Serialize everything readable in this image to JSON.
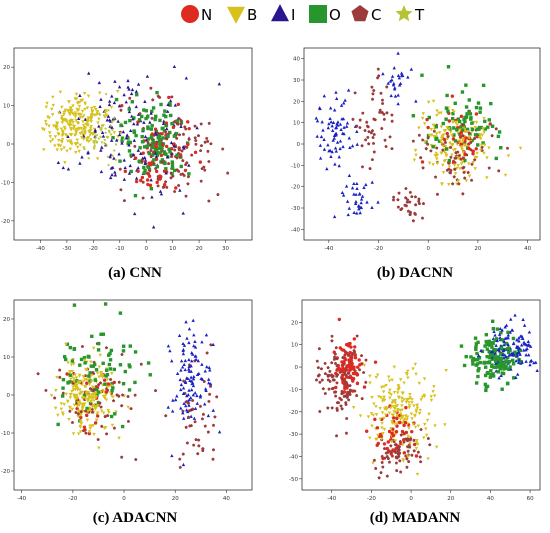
{
  "colors": {
    "N": "#dd2b21",
    "B": "#d8c11b",
    "I": "#2a1790",
    "O": "#28962c",
    "C": "#9b3b3b",
    "T": "#b6c434",
    "blue_points": "#1a22c4"
  },
  "legend": [
    {
      "key": "N",
      "label": "N",
      "marker": "circle-icon",
      "color": "#dd2b21"
    },
    {
      "key": "B",
      "label": "B",
      "marker": "down-triangle-icon",
      "color": "#d8c11b"
    },
    {
      "key": "I",
      "label": "I",
      "marker": "up-triangle-icon",
      "color": "#2a1790"
    },
    {
      "key": "O",
      "label": "O",
      "marker": "square-icon",
      "color": "#28962c"
    },
    {
      "key": "C",
      "label": "C",
      "marker": "pentagon-icon",
      "color": "#9b3b3b"
    },
    {
      "key": "T",
      "label": "T",
      "marker": "star-icon",
      "color": "#b6c434"
    }
  ],
  "chart_data": [
    {
      "type": "scatter",
      "caption": "(a) CNN",
      "xlim": [
        -50,
        40
      ],
      "ylim": [
        -25,
        25
      ],
      "xticks": [
        -40,
        -30,
        -20,
        -10,
        0,
        10,
        20,
        30
      ],
      "yticks": [
        -20,
        -10,
        0,
        10,
        20
      ],
      "clusters": [
        {
          "class": "B",
          "cx": -27,
          "cy": 5,
          "sx": 10,
          "sy": 6,
          "n": 230
        },
        {
          "class": "T",
          "cx": -17,
          "cy": 3,
          "sx": 8,
          "sy": 6,
          "n": 60
        },
        {
          "class": "O",
          "cx": 3,
          "cy": 1,
          "sx": 10,
          "sy": 8,
          "n": 130
        },
        {
          "class": "C",
          "cx": 10,
          "cy": -2,
          "sx": 14,
          "sy": 11,
          "n": 130
        },
        {
          "class": "N",
          "cx": 5,
          "cy": -3,
          "sx": 12,
          "sy": 9,
          "n": 60
        },
        {
          "class": "I",
          "cx": -5,
          "cy": 2,
          "sx": 20,
          "sy": 13,
          "n": 150
        }
      ]
    },
    {
      "type": "scatter",
      "caption": "(b) DACNN",
      "xlim": [
        -50,
        45
      ],
      "ylim": [
        -45,
        45
      ],
      "xticks": [
        -40,
        -20,
        0,
        20,
        40
      ],
      "yticks": [
        -40,
        -30,
        -20,
        -10,
        0,
        10,
        20,
        30,
        40
      ],
      "clusters": [
        {
          "class": "I",
          "cx": -38,
          "cy": 5,
          "sx": 6,
          "sy": 14,
          "n": 70
        },
        {
          "class": "I",
          "cx": -28,
          "cy": -25,
          "sx": 6,
          "sy": 6,
          "n": 35
        },
        {
          "class": "I",
          "cx": -12,
          "cy": 30,
          "sx": 4,
          "sy": 8,
          "n": 25
        },
        {
          "class": "C",
          "cx": -22,
          "cy": 10,
          "sx": 6,
          "sy": 14,
          "n": 50
        },
        {
          "class": "C",
          "cx": -8,
          "cy": -28,
          "sx": 7,
          "sy": 6,
          "n": 30
        },
        {
          "class": "C",
          "cx": 10,
          "cy": -5,
          "sx": 14,
          "sy": 14,
          "n": 70
        },
        {
          "class": "B",
          "cx": 12,
          "cy": 0,
          "sx": 12,
          "sy": 15,
          "n": 180
        },
        {
          "class": "O",
          "cx": 15,
          "cy": 10,
          "sx": 14,
          "sy": 14,
          "n": 80
        },
        {
          "class": "N",
          "cx": 12,
          "cy": 2,
          "sx": 10,
          "sy": 12,
          "n": 40
        }
      ]
    },
    {
      "type": "scatter",
      "caption": "(c) ADACNN",
      "xlim": [
        -43,
        50
      ],
      "ylim": [
        -25,
        25
      ],
      "xticks": [
        -40,
        -20,
        0,
        20,
        40
      ],
      "yticks": [
        -20,
        -10,
        0,
        10,
        20
      ],
      "clusters": [
        {
          "class": "B",
          "cx": -15,
          "cy": 0,
          "sx": 8,
          "sy": 8,
          "n": 230
        },
        {
          "class": "O",
          "cx": -10,
          "cy": 5,
          "sx": 14,
          "sy": 11,
          "n": 80
        },
        {
          "class": "C",
          "cx": -10,
          "cy": 0,
          "sx": 12,
          "sy": 11,
          "n": 70
        },
        {
          "class": "I",
          "cx": 27,
          "cy": 3,
          "sx": 7,
          "sy": 12,
          "n": 110
        },
        {
          "class": "C",
          "cx": 27,
          "cy": -5,
          "sx": 8,
          "sy": 11,
          "n": 45
        },
        {
          "class": "N",
          "cx": -12,
          "cy": -2,
          "sx": 10,
          "sy": 8,
          "n": 20
        }
      ]
    },
    {
      "type": "scatter",
      "caption": "(d) MADANN",
      "xlim": [
        -55,
        65
      ],
      "ylim": [
        -55,
        30
      ],
      "xticks": [
        -40,
        -20,
        0,
        20,
        40,
        60
      ],
      "yticks": [
        -50,
        -40,
        -30,
        -20,
        -10,
        0,
        10,
        20
      ],
      "clusters": [
        {
          "class": "C",
          "cx": -35,
          "cy": -5,
          "sx": 9,
          "sy": 15,
          "n": 120
        },
        {
          "class": "N",
          "cx": -32,
          "cy": 0,
          "sx": 7,
          "sy": 10,
          "n": 90
        },
        {
          "class": "B",
          "cx": -5,
          "cy": -20,
          "sx": 14,
          "sy": 15,
          "n": 200
        },
        {
          "class": "C",
          "cx": -5,
          "cy": -38,
          "sx": 10,
          "sy": 7,
          "n": 70
        },
        {
          "class": "N",
          "cx": -8,
          "cy": -30,
          "sx": 10,
          "sy": 10,
          "n": 50
        },
        {
          "class": "O",
          "cx": 42,
          "cy": 5,
          "sx": 10,
          "sy": 10,
          "n": 150
        },
        {
          "class": "I",
          "cx": 50,
          "cy": 8,
          "sx": 10,
          "sy": 10,
          "n": 120
        }
      ]
    }
  ]
}
